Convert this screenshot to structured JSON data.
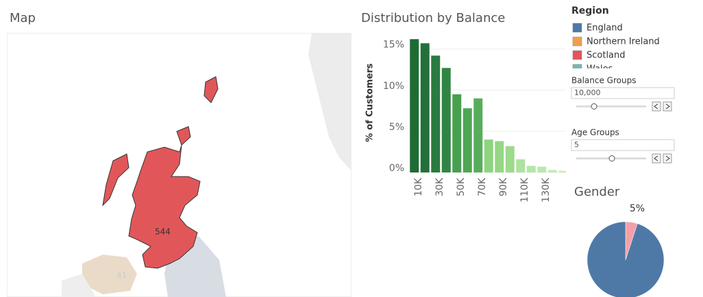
{
  "map": {
    "title": "Map",
    "labels": [
      "544",
      "41"
    ]
  },
  "chart_data": [
    {
      "type": "bar",
      "title": "Distribution by Balance",
      "y_label": "% of Customers",
      "categories": [
        "10K",
        null,
        "30K",
        null,
        "50K",
        null,
        "70K",
        null,
        "90K",
        null,
        "110K",
        null,
        "130K",
        null,
        null
      ],
      "values": [
        16.2,
        15.7,
        14.2,
        12.7,
        9.5,
        7.8,
        9.0,
        4.0,
        3.8,
        3.2,
        1.6,
        0.8,
        0.7,
        0.3,
        0.2
      ],
      "colors": [
        "#1e6b34",
        "#23703a",
        "#2a7b3f",
        "#318544",
        "#47a04f",
        "#4ea655",
        "#58ad5c",
        "#8ed47e",
        "#95d784",
        "#9dda8a",
        "#aee3a0",
        "#b4e6a6",
        "#bbe8ad",
        "#c1ebb3",
        "#c7edb9"
      ],
      "ylim": [
        0,
        16.8
      ],
      "yticks": [
        {
          "value": 0,
          "label": "0%"
        },
        {
          "value": 5,
          "label": "5%"
        },
        {
          "value": 10,
          "label": "10%"
        },
        {
          "value": 15,
          "label": "15%"
        }
      ],
      "grid": true
    },
    {
      "type": "pie",
      "title": "Gender",
      "values": [
        95,
        5
      ],
      "value_labels": [
        null,
        "5%"
      ],
      "colors": [
        "#4e79a7",
        "#f4a0a8"
      ]
    }
  ],
  "legend": {
    "title": "Region",
    "items": [
      {
        "name": "England",
        "color": "#4e79a7"
      },
      {
        "name": "Northern Ireland",
        "color": "#f0a04b"
      },
      {
        "name": "Scotland",
        "color": "#e15759"
      },
      {
        "name": "Wales",
        "color": "#76b7b2"
      }
    ]
  },
  "filters": [
    {
      "label": "Balance Groups",
      "value": "10,000"
    },
    {
      "label": "Age Groups",
      "value": "5"
    }
  ]
}
